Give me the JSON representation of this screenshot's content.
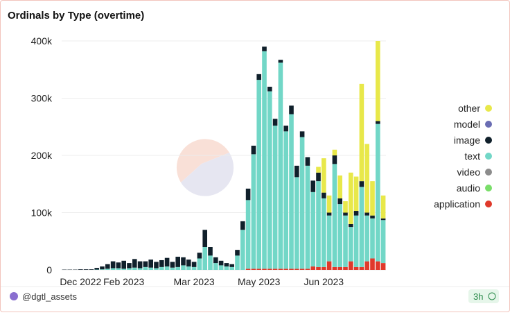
{
  "chart_data": {
    "type": "stacked-bar",
    "title": "Ordinals by Type (overtime)",
    "categories": [
      null,
      null,
      null,
      "Dec 2022",
      null,
      null,
      null,
      null,
      null,
      null,
      null,
      "Feb 2023",
      null,
      null,
      null,
      null,
      null,
      null,
      null,
      null,
      null,
      null,
      null,
      null,
      "Mar 2023",
      null,
      null,
      null,
      null,
      null,
      null,
      null,
      null,
      null,
      null,
      null,
      "May 2023",
      null,
      null,
      null,
      null,
      null,
      null,
      null,
      null,
      null,
      null,
      null,
      "Jun 2023",
      null,
      null,
      null,
      null,
      null,
      null,
      null,
      null,
      null,
      null,
      null
    ],
    "series": [
      {
        "name": "other",
        "color": "#e8e84a",
        "values": [
          0,
          0,
          0,
          0,
          0,
          0,
          0,
          0,
          0,
          0,
          0,
          0,
          0,
          0,
          0,
          0,
          0,
          0,
          0,
          0,
          0,
          0,
          0,
          0,
          0,
          0,
          0,
          0,
          0,
          0,
          0,
          0,
          0,
          0,
          0,
          0,
          0,
          0,
          0,
          0,
          0,
          0,
          0,
          0,
          0,
          0,
          0,
          10000,
          60000,
          30000,
          10000,
          40000,
          20000,
          90000,
          60000,
          170000,
          120000,
          60000,
          140000,
          40000
        ]
      },
      {
        "name": "model",
        "color": "#6a6db3",
        "values": [
          0,
          0,
          0,
          0,
          0,
          0,
          0,
          0,
          0,
          0,
          0,
          0,
          0,
          0,
          0,
          0,
          0,
          0,
          0,
          0,
          0,
          0,
          0,
          0,
          0,
          0,
          0,
          0,
          0,
          0,
          0,
          0,
          0,
          0,
          0,
          0,
          0,
          0,
          0,
          0,
          0,
          0,
          0,
          0,
          0,
          0,
          0,
          0,
          0,
          0,
          0,
          0,
          0,
          0,
          0,
          0,
          0,
          0,
          0,
          0
        ]
      },
      {
        "name": "image",
        "color": "#10202b",
        "values": [
          500,
          500,
          500,
          1000,
          1000,
          1000,
          3000,
          5000,
          8000,
          12000,
          10000,
          14000,
          9000,
          15000,
          12000,
          10000,
          14000,
          11000,
          12000,
          15000,
          10000,
          18000,
          14000,
          12000,
          9000,
          10000,
          30000,
          15000,
          10000,
          8000,
          6000,
          5000,
          10000,
          15000,
          20000,
          15000,
          10000,
          8000,
          8000,
          12000,
          5000,
          10000,
          15000,
          20000,
          10000,
          15000,
          20000,
          15000,
          10000,
          5000,
          15000,
          10000,
          5000,
          5000,
          8000,
          10000,
          5000,
          5000,
          5000,
          3000
        ]
      },
      {
        "name": "text",
        "color": "#72d7c7",
        "values": [
          0,
          0,
          0,
          0,
          0,
          0,
          500,
          1000,
          2000,
          3000,
          3000,
          2000,
          3000,
          4000,
          3000,
          5000,
          4000,
          3000,
          5000,
          6000,
          4000,
          5000,
          8000,
          6000,
          5000,
          20000,
          40000,
          25000,
          12000,
          8000,
          6000,
          5000,
          25000,
          70000,
          120000,
          200000,
          330000,
          380000,
          310000,
          250000,
          360000,
          240000,
          270000,
          160000,
          230000,
          180000,
          130000,
          150000,
          120000,
          80000,
          180000,
          110000,
          90000,
          60000,
          90000,
          140000,
          80000,
          70000,
          240000,
          75000
        ]
      },
      {
        "name": "video",
        "color": "#8c8c8c",
        "values": [
          0,
          0,
          0,
          0,
          0,
          0,
          0,
          0,
          0,
          0,
          0,
          0,
          0,
          0,
          0,
          0,
          0,
          0,
          0,
          0,
          0,
          0,
          0,
          0,
          0,
          0,
          0,
          0,
          0,
          0,
          0,
          0,
          0,
          0,
          0,
          0,
          0,
          0,
          0,
          0,
          0,
          0,
          0,
          0,
          0,
          0,
          0,
          0,
          0,
          0,
          0,
          0,
          0,
          0,
          0,
          0,
          0,
          0,
          0,
          0
        ]
      },
      {
        "name": "audio",
        "color": "#7ade6a",
        "values": [
          0,
          0,
          0,
          0,
          0,
          0,
          0,
          0,
          0,
          0,
          0,
          0,
          0,
          0,
          0,
          0,
          0,
          0,
          0,
          0,
          0,
          0,
          0,
          0,
          0,
          0,
          0,
          0,
          0,
          0,
          0,
          0,
          0,
          0,
          0,
          0,
          0,
          0,
          0,
          0,
          0,
          0,
          0,
          0,
          0,
          0,
          0,
          0,
          0,
          0,
          0,
          0,
          0,
          0,
          0,
          0,
          0,
          0,
          0,
          0
        ]
      },
      {
        "name": "application",
        "color": "#e0392b",
        "values": [
          0,
          0,
          0,
          0,
          0,
          0,
          0,
          0,
          0,
          0,
          0,
          0,
          0,
          0,
          0,
          0,
          0,
          0,
          0,
          0,
          0,
          0,
          0,
          0,
          0,
          0,
          0,
          0,
          0,
          0,
          0,
          0,
          0,
          0,
          2000,
          2000,
          2000,
          2000,
          2000,
          2000,
          2000,
          2000,
          2000,
          2000,
          2000,
          2000,
          6000,
          5000,
          5000,
          15000,
          5000,
          5000,
          5000,
          15000,
          5000,
          5000,
          15000,
          20000,
          15000,
          12000
        ]
      }
    ],
    "ylim": [
      0,
      400000
    ],
    "yticks": [
      0,
      {
        "value": 100000,
        "label": "100k"
      },
      {
        "value": 200000,
        "label": "200k"
      },
      {
        "value": 300000,
        "label": "300k"
      },
      {
        "value": 400000,
        "label": "400k"
      }
    ],
    "grid": true,
    "legend": "right"
  },
  "footer": {
    "user": "@dgtl_assets",
    "age": "3h"
  }
}
